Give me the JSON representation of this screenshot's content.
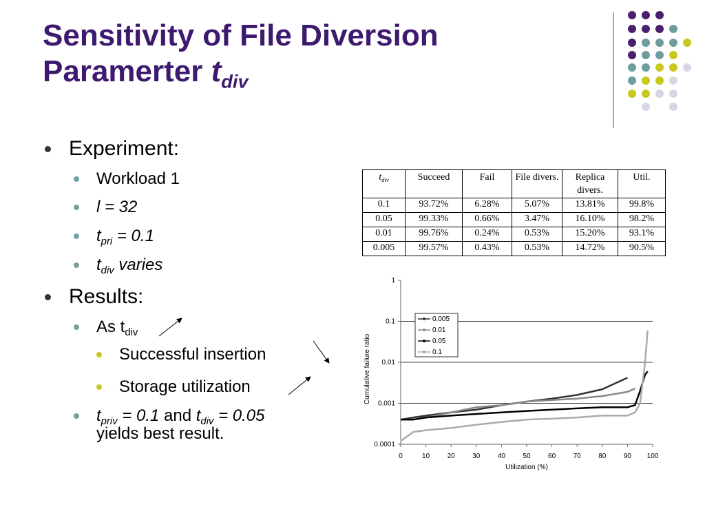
{
  "slide": {
    "title": {
      "line1": "Sensitivity of File Diversion",
      "line2": [
        {
          "text": "Paramerter "
        },
        {
          "text": "t",
          "style": "italic"
        },
        {
          "text": "div",
          "style": "italic sub"
        }
      ]
    },
    "bullets": [
      {
        "level": 1,
        "segments": [
          {
            "text": "Experiment:"
          }
        ]
      },
      {
        "level": 2,
        "segments": [
          {
            "text": "Workload 1"
          }
        ]
      },
      {
        "level": 2,
        "segments": [
          {
            "text": "l = 32",
            "style": "italic"
          }
        ]
      },
      {
        "level": 2,
        "segments": [
          {
            "text": "t",
            "style": "italic"
          },
          {
            "text": "pri",
            "style": "italic sub"
          },
          {
            "text": " = 0.1",
            "style": "italic"
          }
        ]
      },
      {
        "level": 2,
        "segments": [
          {
            "text": "t",
            "style": "italic"
          },
          {
            "text": "div",
            "style": "italic sub"
          },
          {
            "text": " varies",
            "style": "italic"
          }
        ]
      },
      {
        "level": 1,
        "segments": [
          {
            "text": "Results:"
          }
        ]
      },
      {
        "level": 2,
        "segments": [
          {
            "text": "As t"
          },
          {
            "text": "div",
            "style": "sub"
          }
        ]
      },
      {
        "level": 3,
        "segments": [
          {
            "text": "Successful insertion"
          }
        ]
      },
      {
        "level": 3,
        "segments": [
          {
            "text": "Storage utilization"
          }
        ]
      },
      {
        "level": 2,
        "segments": [
          {
            "text": "t",
            "style": "italic"
          },
          {
            "text": "priv",
            "style": "italic sub"
          },
          {
            "text": " = 0.1",
            "style": "italic"
          },
          {
            "text": " and "
          },
          {
            "text": "t",
            "style": "italic"
          },
          {
            "text": "div",
            "style": "italic sub"
          },
          {
            "text": " = 0.05",
            "style": "italic"
          },
          {
            "text": "yields best result.",
            "style": "newline"
          }
        ]
      }
    ]
  },
  "table": {
    "first_header": {
      "text": "t",
      "sub": "div"
    },
    "header": [
      "Succeed",
      "Fail",
      "File divers.",
      "Replica divers.",
      "Util."
    ],
    "rows": [
      [
        "0.1",
        "93.72%",
        "6.28%",
        "5.07%",
        "13.81%",
        "99.8%"
      ],
      [
        "0.05",
        "99.33%",
        "0.66%",
        "3.47%",
        "16.10%",
        "98.2%"
      ],
      [
        "0.01",
        "99.76%",
        "0.24%",
        "0.53%",
        "15.20%",
        "93.1%"
      ],
      [
        "0.005",
        "99.57%",
        "0.43%",
        "0.53%",
        "14.72%",
        "90.5%"
      ]
    ]
  },
  "chart_data": {
    "type": "line",
    "x_label": "Utilization (%)",
    "y_label": "Cumulative failure ratio",
    "x": [
      0,
      5,
      10,
      20,
      30,
      40,
      50,
      60,
      70,
      80,
      90,
      93,
      95,
      97,
      98
    ],
    "series": [
      {
        "name": "0.005",
        "color": "#333333",
        "values": [
          0.0004,
          0.00045,
          0.0005,
          0.0006,
          0.0007,
          0.0009,
          0.0011,
          0.0013,
          0.0016,
          0.0022,
          0.0042,
          null,
          null,
          null,
          null
        ]
      },
      {
        "name": "0.01",
        "color": "#888888",
        "values": [
          0.0004,
          0.0004,
          0.00045,
          0.0006,
          0.0008,
          0.0009,
          0.0011,
          0.0012,
          0.0013,
          0.0015,
          0.0019,
          0.0023,
          null,
          null,
          null
        ]
      },
      {
        "name": "0.05",
        "color": "#000000",
        "values": [
          0.0004,
          0.0004,
          0.00045,
          0.0005,
          0.00055,
          0.0006,
          0.00065,
          0.0007,
          0.00075,
          0.0008,
          0.0008,
          0.0009,
          0.002,
          0.005,
          0.006
        ]
      },
      {
        "name": "0.1",
        "color": "#aaaaaa",
        "values": [
          0.00012,
          0.0002,
          0.00022,
          0.00025,
          0.0003,
          0.00035,
          0.0004,
          0.00042,
          0.00045,
          0.0005,
          0.0005,
          0.0006,
          0.001,
          0.01,
          0.06
        ]
      }
    ],
    "xlim": [
      0,
      100
    ],
    "xticks": [
      0,
      10,
      20,
      30,
      40,
      50,
      60,
      70,
      80,
      90,
      100
    ],
    "ylim": [
      0.0001,
      1
    ],
    "yticks": [
      0.0001,
      0.001,
      0.01,
      0.1,
      1
    ],
    "log_y": true,
    "grid": true,
    "legend": "upper-left"
  }
}
